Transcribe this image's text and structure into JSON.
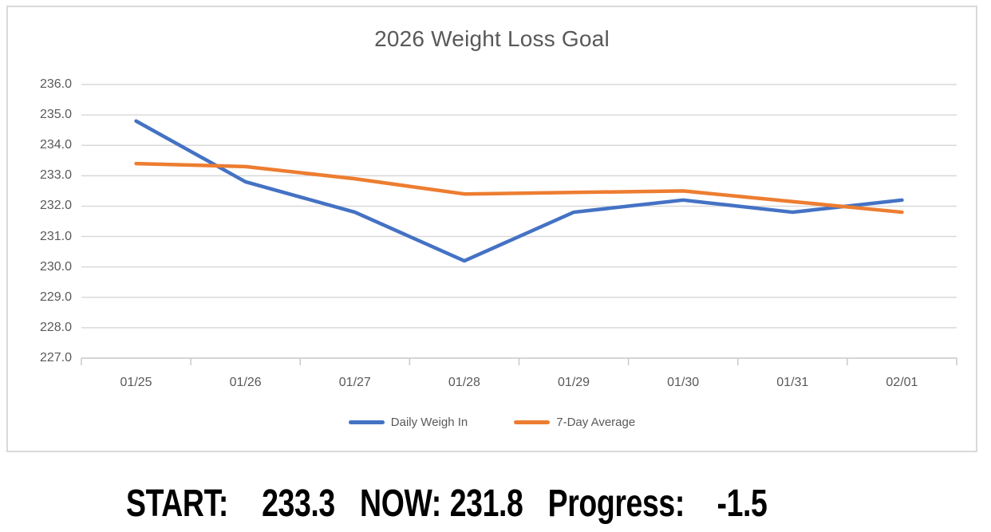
{
  "chart": {
    "title": "2026 Weight Loss Goal",
    "colors": {
      "series_blue": "#4472C4",
      "series_orange": "#ED7D31",
      "gridline": "#D9D9D9",
      "axis_line": "#C9C9C9",
      "axis_text": "#595959",
      "title_text": "#595959",
      "frame_border": "#D9D9D9"
    }
  },
  "chart_data": {
    "type": "line",
    "title": "2026 Weight Loss Goal",
    "categories": [
      "01/25",
      "01/26",
      "01/27",
      "01/28",
      "01/29",
      "01/30",
      "01/31",
      "02/01"
    ],
    "series": [
      {
        "name": "Daily Weigh In",
        "color": "#4472C4",
        "values": [
          234.8,
          232.8,
          231.8,
          230.2,
          231.8,
          232.2,
          231.8,
          232.2
        ]
      },
      {
        "name": "7-Day Average",
        "color": "#ED7D31",
        "values": [
          233.4,
          233.3,
          232.9,
          232.4,
          232.45,
          232.5,
          232.15,
          231.8
        ]
      }
    ],
    "ylim": [
      227.0,
      236.0
    ],
    "y_tick_step": 1.0,
    "y_ticks": [
      "236.0",
      "235.0",
      "234.0",
      "233.0",
      "232.0",
      "231.0",
      "230.0",
      "229.0",
      "228.0",
      "227.0"
    ],
    "xlabel": "",
    "ylabel": "",
    "grid": true,
    "legend_position": "bottom"
  },
  "caption": {
    "start_label": "START:",
    "start_value": "233.3",
    "now_label": "NOW:",
    "now_value": "231.8",
    "progress_label": "Progress:",
    "progress_value": "-1.5"
  }
}
